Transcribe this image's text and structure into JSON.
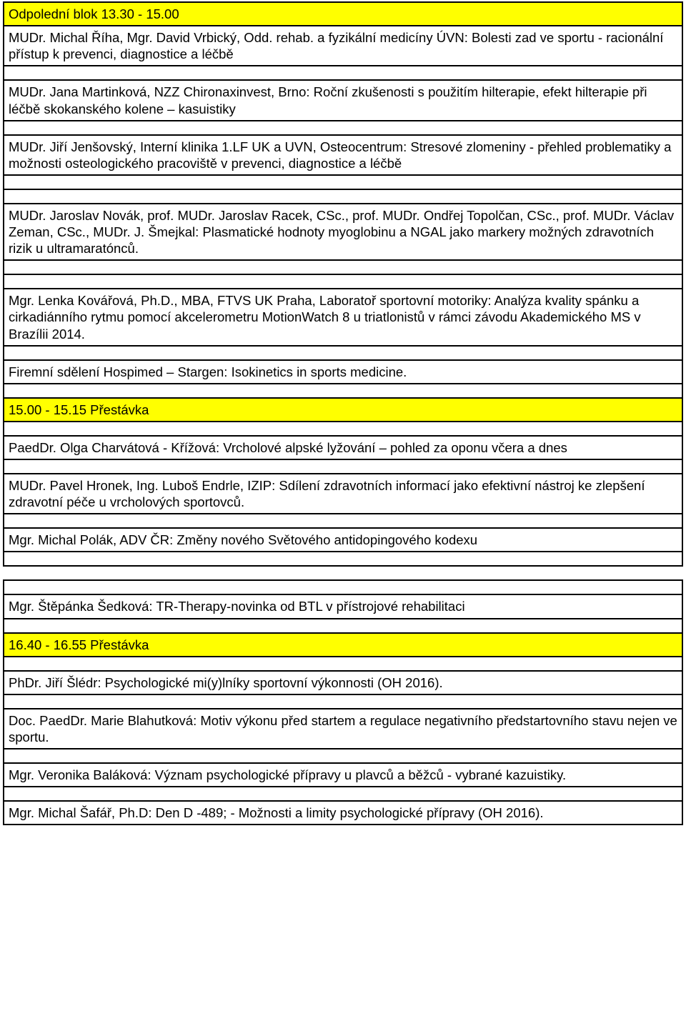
{
  "colors": {
    "highlight": "#ffff00",
    "border": "#000000",
    "text": "#000000",
    "background": "#ffffff"
  },
  "typography": {
    "font_family": "Arial",
    "font_size_pt": 14,
    "line_height": 1.25
  },
  "tables": [
    {
      "rows": [
        {
          "text": "Odpolední blok  13.30 - 15.00",
          "highlight": true
        },
        {
          "text": "MUDr. Michal Říha, Mgr. David Vrbický, Odd. rehab. a fyzikální medicíny ÚVN:  Bolesti zad ve sportu - racionální přístup k prevenci, diagnostice a léčbě",
          "highlight": false
        },
        {
          "text": "",
          "highlight": false,
          "empty": true
        },
        {
          "text": "MUDr. Jana Martinková, NZZ Chironaxinvest, Brno:  Roční zkušenosti s použitím hilterapie, efekt hilterapie při léčbě skokanského kolene – kasuistiky",
          "highlight": false
        },
        {
          "text": "",
          "highlight": false,
          "empty": true
        },
        {
          "text": "MUDr. Jiří Jenšovský, Interní klinika 1.LF UK a UVN, Osteocentrum: Stresové zlomeniny - přehled problematiky a možnosti osteologického pracoviště v prevenci, diagnostice a léčbě",
          "highlight": false
        },
        {
          "text": "",
          "highlight": false,
          "empty": true
        },
        {
          "text": "",
          "highlight": false,
          "empty": true
        },
        {
          "text": "MUDr. Jaroslav Novák, prof. MUDr. Jaroslav Racek, CSc., prof. MUDr. Ondřej Topolčan, CSc., prof. MUDr. Václav Zeman, CSc., MUDr. J. Šmejkal: Plasmatické hodnoty myoglobinu a NGAL jako markery možných zdravotních rizik u ultramaratónců.",
          "highlight": false
        },
        {
          "text": "",
          "highlight": false,
          "empty": true
        },
        {
          "text": "",
          "highlight": false,
          "empty": true
        },
        {
          "text": "Mgr. Lenka Kovářová, Ph.D., MBA, FTVS UK Praha, Laboratoř sportovní motoriky: Analýza kvality spánku a cirkadiánního rytmu pomocí akcelerometru MotionWatch 8 u triatlonistů v rámci závodu Akademického MS v Brazílii 2014.",
          "highlight": false
        },
        {
          "text": "",
          "highlight": false,
          "empty": true
        },
        {
          "text": "Firemní sdělení Hospimed – Stargen: Isokinetics in sports medicine.",
          "highlight": false
        },
        {
          "text": "",
          "highlight": false,
          "empty": true
        },
        {
          "text": "15.00 - 15.15 Přestávka",
          "highlight": true
        },
        {
          "text": "",
          "highlight": false,
          "empty": true
        },
        {
          "text": "PaedDr. Olga Charvátová - Křížová:  Vrcholové alpské lyžování – pohled za oponu včera a dnes",
          "highlight": false
        },
        {
          "text": "",
          "highlight": false,
          "empty": true
        },
        {
          "text": "MUDr. Pavel Hronek, Ing. Luboš Endrle, IZIP: Sdílení zdravotních informací jako efektivní nástroj ke zlepšení zdravotní péče u vrcholových sportovců.",
          "highlight": false
        },
        {
          "text": "",
          "highlight": false,
          "empty": true
        },
        {
          "text": "Mgr. Michal Polák, ADV ČR: Změny nového Světového antidopingového kodexu",
          "highlight": false
        },
        {
          "text": "",
          "highlight": false,
          "empty": true
        }
      ]
    },
    {
      "rows": [
        {
          "text": "",
          "highlight": false,
          "empty": true
        },
        {
          "text": "Mgr. Štěpánka Šedková: TR-Therapy-novinka od BTL v přístrojové rehabilitaci",
          "highlight": false
        },
        {
          "text": "",
          "highlight": false,
          "empty": true
        },
        {
          "text": "16.40  - 16.55 Přestávka",
          "highlight": true
        },
        {
          "text": "",
          "highlight": false,
          "empty": true
        },
        {
          "text": "PhDr. Jiří Šlédr: Psychologické mi(y)lníky sportovní výkonnosti (OH 2016).",
          "highlight": false
        },
        {
          "text": "",
          "highlight": false,
          "empty": true
        },
        {
          "text": "Doc. PaedDr. Marie Blahutková: Motiv výkonu před startem a regulace negativního předstartovního stavu nejen ve sportu.",
          "highlight": false
        },
        {
          "text": "",
          "highlight": false,
          "empty": true
        },
        {
          "text": "Mgr. Veronika Baláková: Význam psychologické přípravy u plavců a běžců - vybrané kazuistiky.",
          "highlight": false
        },
        {
          "text": "",
          "highlight": false,
          "empty": true
        },
        {
          "text": "Mgr. Michal Šafář, Ph.D:  Den D -489; - Možnosti a limity psychologické přípravy (OH 2016).",
          "highlight": false
        }
      ]
    }
  ]
}
